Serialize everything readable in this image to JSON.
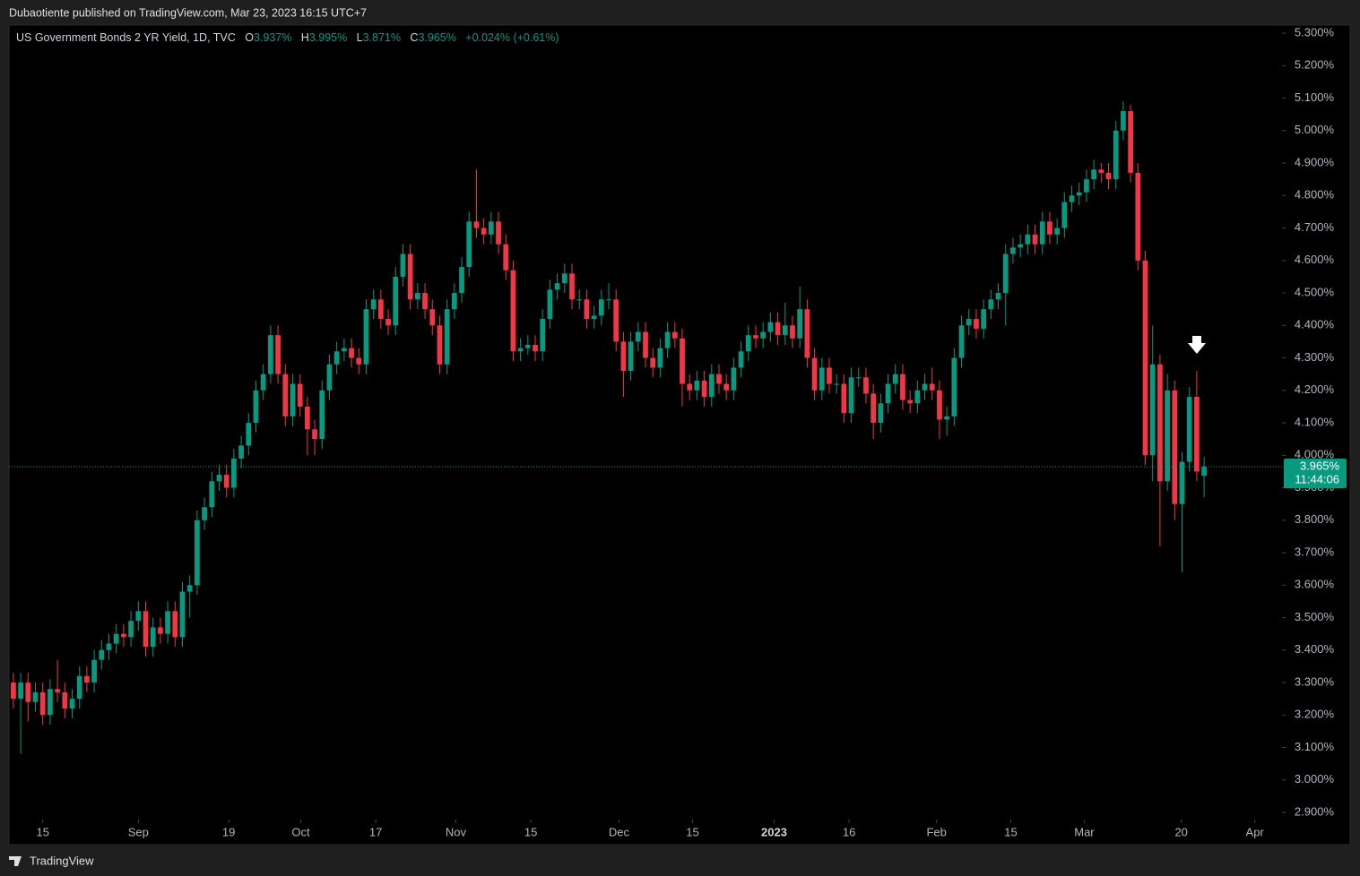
{
  "chart_data": {
    "type": "candlestick",
    "publisher_line": "Dubaotiente published on TradingView.com, Mar 23, 2023 16:15 UTC+7",
    "title": "US Government Bonds 2 YR Yield, 1D, TVC",
    "legend": {
      "o_label": "O",
      "o_value": "3.937%",
      "h_label": "H",
      "h_value": "3.995%",
      "l_label": "L",
      "l_value": "3.871%",
      "c_label": "C",
      "c_value": "3.965%",
      "change": "+0.024% (+0.61%)"
    },
    "current_price_label": "3.965%",
    "countdown": "11:44:06",
    "brand": "TradingView",
    "up_color": "#089981",
    "down_color": "#f23645",
    "open": [
      3.3,
      3.25,
      3.3,
      3.24,
      3.27,
      3.2,
      3.28,
      3.27,
      3.22,
      3.25,
      3.32,
      3.3,
      3.37,
      3.4,
      3.42,
      3.45,
      3.44,
      3.49,
      3.52,
      3.41,
      3.47,
      3.45,
      3.52,
      3.44,
      3.58,
      3.6,
      3.8,
      3.84,
      3.92,
      3.94,
      3.9,
      3.99,
      4.03,
      4.1,
      4.2,
      4.25,
      4.37,
      4.25,
      4.12,
      4.22,
      4.15,
      4.08,
      4.05,
      4.2,
      4.28,
      4.32,
      4.33,
      4.3,
      4.28,
      4.45,
      4.48,
      4.42,
      4.4,
      4.55,
      4.62,
      4.48,
      4.5,
      4.45,
      4.4,
      4.28,
      4.45,
      4.5,
      4.58,
      4.72,
      4.7,
      4.68,
      4.72,
      4.65,
      4.57,
      4.32,
      4.33,
      4.34,
      4.32,
      4.42,
      4.51,
      4.53,
      4.56,
      4.48,
      4.48,
      4.42,
      4.43,
      4.48,
      4.48,
      4.35,
      4.26,
      4.35,
      4.38,
      4.3,
      4.27,
      4.33,
      4.38,
      4.36,
      4.22,
      4.2,
      4.23,
      4.18,
      4.25,
      4.22,
      4.2,
      4.27,
      4.32,
      4.37,
      4.36,
      4.38,
      4.41,
      4.37,
      4.4,
      4.36,
      4.45,
      4.3,
      4.2,
      4.27,
      4.22,
      4.22,
      4.13,
      4.24,
      4.24,
      4.19,
      4.1,
      4.16,
      4.22,
      4.25,
      4.17,
      4.16,
      4.2,
      4.22,
      4.2,
      4.11,
      4.12,
      4.3,
      4.4,
      4.42,
      4.39,
      4.45,
      4.48,
      4.5,
      4.62,
      4.64,
      4.65,
      4.68,
      4.65,
      4.72,
      4.68,
      4.7,
      4.78,
      4.8,
      4.81,
      4.85,
      4.88,
      4.87,
      4.85,
      5.0,
      5.06,
      4.87,
      4.6,
      4.0,
      4.28,
      3.92,
      4.2,
      3.85,
      3.98,
      4.18,
      3.937
    ],
    "high": [
      3.33,
      3.33,
      3.33,
      3.3,
      3.3,
      3.31,
      3.37,
      3.3,
      3.28,
      3.35,
      3.35,
      3.4,
      3.43,
      3.45,
      3.48,
      3.48,
      3.52,
      3.55,
      3.55,
      3.5,
      3.5,
      3.55,
      3.55,
      3.61,
      3.63,
      3.83,
      3.87,
      3.95,
      3.97,
      3.97,
      4.02,
      4.06,
      4.13,
      4.23,
      4.28,
      4.4,
      4.4,
      4.28,
      4.25,
      4.25,
      4.18,
      4.11,
      4.23,
      4.31,
      4.35,
      4.36,
      4.36,
      4.33,
      4.48,
      4.51,
      4.51,
      4.45,
      4.58,
      4.65,
      4.65,
      4.53,
      4.53,
      4.48,
      4.43,
      4.48,
      4.53,
      4.61,
      4.75,
      4.88,
      4.73,
      4.75,
      4.75,
      4.68,
      4.6,
      4.36,
      4.37,
      4.37,
      4.45,
      4.54,
      4.56,
      4.59,
      4.59,
      4.51,
      4.51,
      4.46,
      4.51,
      4.53,
      4.51,
      4.38,
      4.38,
      4.41,
      4.41,
      4.33,
      4.36,
      4.41,
      4.41,
      4.39,
      4.25,
      4.26,
      4.26,
      4.28,
      4.28,
      4.25,
      4.3,
      4.35,
      4.4,
      4.4,
      4.41,
      4.44,
      4.44,
      4.47,
      4.43,
      4.52,
      4.48,
      4.33,
      4.3,
      4.3,
      4.25,
      4.25,
      4.27,
      4.27,
      4.27,
      4.22,
      4.19,
      4.25,
      4.28,
      4.28,
      4.2,
      4.23,
      4.25,
      4.27,
      4.23,
      4.15,
      4.33,
      4.43,
      4.45,
      4.45,
      4.48,
      4.51,
      4.53,
      4.65,
      4.67,
      4.68,
      4.71,
      4.71,
      4.75,
      4.75,
      4.73,
      4.81,
      4.83,
      4.84,
      4.88,
      4.91,
      4.9,
      4.9,
      5.03,
      5.09,
      5.08,
      4.9,
      4.63,
      4.4,
      4.31,
      4.25,
      4.23,
      4.01,
      4.21,
      4.26,
      3.995
    ],
    "low": [
      3.22,
      3.08,
      3.18,
      3.21,
      3.17,
      3.17,
      3.24,
      3.19,
      3.19,
      3.22,
      3.27,
      3.27,
      3.34,
      3.37,
      3.39,
      3.41,
      3.41,
      3.46,
      3.38,
      3.38,
      3.42,
      3.42,
      3.41,
      3.41,
      3.5,
      3.57,
      3.77,
      3.81,
      3.89,
      3.87,
      3.87,
      3.96,
      4.0,
      4.07,
      4.17,
      4.22,
      4.22,
      4.09,
      4.09,
      4.12,
      4.0,
      4.0,
      4.02,
      4.17,
      4.25,
      4.29,
      4.27,
      4.25,
      4.25,
      4.42,
      4.39,
      4.37,
      4.37,
      4.52,
      4.45,
      4.45,
      4.42,
      4.37,
      4.25,
      4.25,
      4.42,
      4.47,
      4.55,
      4.67,
      4.65,
      4.65,
      4.62,
      4.54,
      4.29,
      4.29,
      4.31,
      4.29,
      4.29,
      4.39,
      4.48,
      4.5,
      4.45,
      4.45,
      4.39,
      4.39,
      4.4,
      4.45,
      4.32,
      4.18,
      4.23,
      4.32,
      4.27,
      4.24,
      4.24,
      4.3,
      4.33,
      4.15,
      4.17,
      4.17,
      4.15,
      4.15,
      4.19,
      4.17,
      4.17,
      4.24,
      4.29,
      4.33,
      4.33,
      4.35,
      4.34,
      4.34,
      4.33,
      4.33,
      4.27,
      4.17,
      4.17,
      4.19,
      4.19,
      4.1,
      4.1,
      4.21,
      4.16,
      4.05,
      4.07,
      4.13,
      4.19,
      4.14,
      4.13,
      4.13,
      4.17,
      4.17,
      4.05,
      4.06,
      4.09,
      4.27,
      4.37,
      4.36,
      4.36,
      4.42,
      4.45,
      4.4,
      4.59,
      4.61,
      4.62,
      4.62,
      4.62,
      4.65,
      4.65,
      4.67,
      4.75,
      4.77,
      4.78,
      4.82,
      4.84,
      4.82,
      4.82,
      4.97,
      4.84,
      4.57,
      3.97,
      3.92,
      3.72,
      3.89,
      3.8,
      3.64,
      3.95,
      3.92,
      3.871
    ],
    "close": [
      3.25,
      3.3,
      3.24,
      3.27,
      3.2,
      3.28,
      3.27,
      3.22,
      3.25,
      3.32,
      3.3,
      3.37,
      3.4,
      3.42,
      3.45,
      3.44,
      3.49,
      3.52,
      3.41,
      3.47,
      3.45,
      3.52,
      3.44,
      3.58,
      3.6,
      3.8,
      3.84,
      3.92,
      3.94,
      3.9,
      3.99,
      4.03,
      4.1,
      4.2,
      4.25,
      4.37,
      4.25,
      4.12,
      4.22,
      4.15,
      4.08,
      4.05,
      4.2,
      4.28,
      4.32,
      4.33,
      4.3,
      4.28,
      4.45,
      4.48,
      4.42,
      4.4,
      4.55,
      4.62,
      4.48,
      4.5,
      4.45,
      4.4,
      4.28,
      4.45,
      4.5,
      4.58,
      4.72,
      4.7,
      4.68,
      4.72,
      4.65,
      4.57,
      4.32,
      4.33,
      4.34,
      4.32,
      4.42,
      4.51,
      4.53,
      4.56,
      4.48,
      4.48,
      4.42,
      4.43,
      4.48,
      4.48,
      4.35,
      4.26,
      4.35,
      4.38,
      4.3,
      4.27,
      4.33,
      4.38,
      4.36,
      4.22,
      4.2,
      4.23,
      4.18,
      4.25,
      4.22,
      4.2,
      4.27,
      4.32,
      4.37,
      4.36,
      4.38,
      4.41,
      4.37,
      4.4,
      4.36,
      4.45,
      4.3,
      4.2,
      4.27,
      4.22,
      4.22,
      4.13,
      4.24,
      4.24,
      4.19,
      4.1,
      4.16,
      4.22,
      4.25,
      4.17,
      4.16,
      4.2,
      4.22,
      4.2,
      4.11,
      4.12,
      4.3,
      4.4,
      4.42,
      4.39,
      4.45,
      4.48,
      4.5,
      4.62,
      4.64,
      4.65,
      4.68,
      4.65,
      4.72,
      4.68,
      4.7,
      4.78,
      4.8,
      4.81,
      4.85,
      4.88,
      4.87,
      4.85,
      5.0,
      5.06,
      4.87,
      4.6,
      4.0,
      4.28,
      3.92,
      4.2,
      3.85,
      3.98,
      4.18,
      3.95,
      3.965
    ],
    "xlim": [
      -0.6,
      172.6
    ],
    "xticks": [
      {
        "value": 4.0,
        "label": "15"
      },
      {
        "value": 17.0,
        "label": "Sep"
      },
      {
        "value": 29.3,
        "label": "19"
      },
      {
        "value": 39.1,
        "label": "Oct"
      },
      {
        "value": 49.3,
        "label": "17"
      },
      {
        "value": 60.2,
        "label": "Nov"
      },
      {
        "value": 70.4,
        "label": "15"
      },
      {
        "value": 82.4,
        "label": "Dec"
      },
      {
        "value": 92.4,
        "label": "15"
      },
      {
        "value": 103.5,
        "label": "2023"
      },
      {
        "value": 113.7,
        "label": "16"
      },
      {
        "value": 125.6,
        "label": "Feb"
      },
      {
        "value": 135.7,
        "label": "15"
      },
      {
        "value": 145.7,
        "label": "Mar"
      },
      {
        "value": 158.9,
        "label": "20"
      },
      {
        "value": 168.9,
        "label": "Apr"
      }
    ],
    "ylim": [
      2.878,
      5.325
    ],
    "yticks": [
      {
        "value": 5.3,
        "label": "5.300%"
      },
      {
        "value": 5.2,
        "label": "5.200%"
      },
      {
        "value": 5.1,
        "label": "5.100%"
      },
      {
        "value": 5.0,
        "label": "5.000%"
      },
      {
        "value": 4.9,
        "label": "4.900%"
      },
      {
        "value": 4.8,
        "label": "4.800%"
      },
      {
        "value": 4.7,
        "label": "4.700%"
      },
      {
        "value": 4.6,
        "label": "4.600%"
      },
      {
        "value": 4.5,
        "label": "4.500%"
      },
      {
        "value": 4.4,
        "label": "4.400%"
      },
      {
        "value": 4.3,
        "label": "4.300%"
      },
      {
        "value": 4.2,
        "label": "4.200%"
      },
      {
        "value": 4.1,
        "label": "4.100%"
      },
      {
        "value": 4.0,
        "label": "4.000%"
      },
      {
        "value": 3.9,
        "label": "3.900%"
      },
      {
        "value": 3.8,
        "label": "3.800%"
      },
      {
        "value": 3.7,
        "label": "3.700%"
      },
      {
        "value": 3.6,
        "label": "3.600%"
      },
      {
        "value": 3.5,
        "label": "3.500%"
      },
      {
        "value": 3.4,
        "label": "3.400%"
      },
      {
        "value": 3.3,
        "label": "3.300%"
      },
      {
        "value": 3.2,
        "label": "3.200%"
      },
      {
        "value": 3.1,
        "label": "3.100%"
      },
      {
        "value": 3.0,
        "label": "3.000%"
      },
      {
        "value": 2.9,
        "label": "2.900%"
      }
    ],
    "grid": false
  }
}
